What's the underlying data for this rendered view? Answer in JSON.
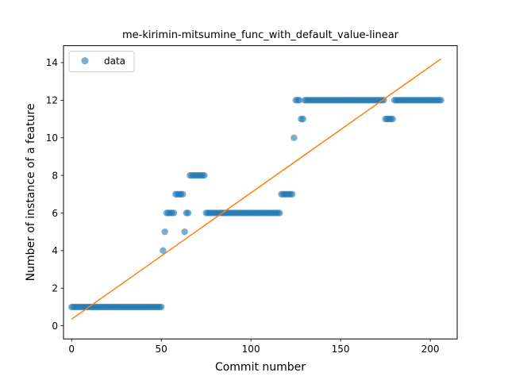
{
  "chart_data": {
    "type": "scatter",
    "title": "me-kirimin-mitsumine_func_with_default_value-linear",
    "xlabel": "Commit number",
    "ylabel": "Number of instance of a feature",
    "xlim": [
      -4.5,
      215
    ],
    "ylim": [
      -0.7,
      14.9
    ],
    "x_ticks": [
      0,
      50,
      100,
      150,
      200
    ],
    "y_ticks": [
      0,
      2,
      4,
      6,
      8,
      10,
      12,
      14
    ],
    "grid": false,
    "legend": {
      "position": "top-left",
      "entries": [
        "data"
      ]
    },
    "colors": {
      "data": "#1f77b4",
      "fit": "#ff7f0e"
    },
    "series": [
      {
        "name": "data",
        "style": "markers",
        "segments": [
          {
            "x_start": 0,
            "x_end": 50,
            "y": 1
          },
          {
            "x_start": 51,
            "x_end": 51,
            "y": 4
          },
          {
            "x_start": 52,
            "x_end": 52,
            "y": 5
          },
          {
            "x_start": 53,
            "x_end": 57,
            "y": 6
          },
          {
            "x_start": 58,
            "x_end": 62,
            "y": 7
          },
          {
            "x_start": 63,
            "x_end": 63,
            "y": 5
          },
          {
            "x_start": 64,
            "x_end": 65,
            "y": 6
          },
          {
            "x_start": 66,
            "x_end": 74,
            "y": 8
          },
          {
            "x_start": 75,
            "x_end": 116,
            "y": 6
          },
          {
            "x_start": 117,
            "x_end": 123,
            "y": 7
          },
          {
            "x_start": 124,
            "x_end": 124,
            "y": 10
          },
          {
            "x_start": 125,
            "x_end": 127,
            "y": 12
          },
          {
            "x_start": 128,
            "x_end": 129,
            "y": 11
          },
          {
            "x_start": 130,
            "x_end": 174,
            "y": 12
          },
          {
            "x_start": 175,
            "x_end": 179,
            "y": 11
          },
          {
            "x_start": 180,
            "x_end": 206,
            "y": 12
          }
        ]
      },
      {
        "name": "",
        "style": "line",
        "x": [
          0,
          206
        ],
        "y": [
          0.35,
          14.2
        ]
      }
    ]
  }
}
